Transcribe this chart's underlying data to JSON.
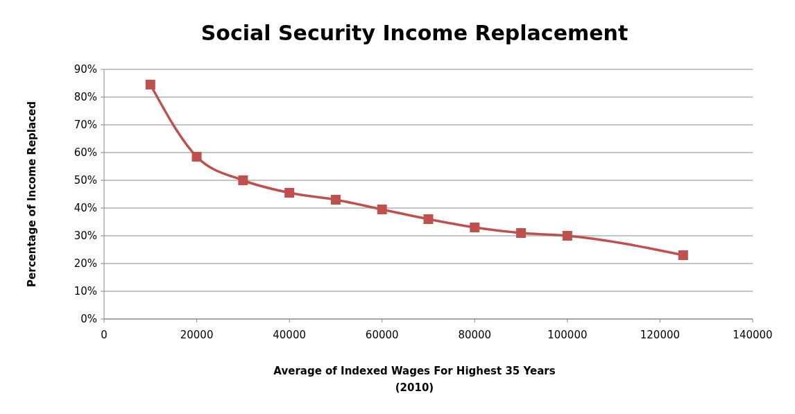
{
  "chart_data": {
    "type": "line",
    "title": "Social Security Income Replacement",
    "xlabel": "Average of Indexed Wages For Highest 35 Years\n(2010)",
    "ylabel": "Percentage of Income Replaced",
    "x": [
      10000,
      20000,
      30000,
      40000,
      50000,
      60000,
      70000,
      80000,
      90000,
      100000,
      125000
    ],
    "series": [
      {
        "color": "#c0504d",
        "values": [
          84.5,
          58.5,
          50,
          45.5,
          43,
          39.5,
          36,
          33,
          31,
          30,
          23
        ]
      }
    ],
    "xlim": [
      0,
      140000
    ],
    "xticks": [
      0,
      20000,
      40000,
      60000,
      80000,
      100000,
      120000,
      140000
    ],
    "ylim": [
      0,
      90
    ],
    "yticks": [
      {
        "value": 0,
        "label": "0%"
      },
      {
        "value": 10,
        "label": "10%"
      },
      {
        "value": 20,
        "label": "20%"
      },
      {
        "value": 30,
        "label": "30%"
      },
      {
        "value": 40,
        "label": "40%"
      },
      {
        "value": 50,
        "label": "50%"
      },
      {
        "value": 60,
        "label": "60%"
      },
      {
        "value": 70,
        "label": "70%"
      },
      {
        "value": 80,
        "label": "80%"
      },
      {
        "value": 90,
        "label": "90%"
      }
    ],
    "grid": "y",
    "marker": "square",
    "line_style": "solid"
  }
}
